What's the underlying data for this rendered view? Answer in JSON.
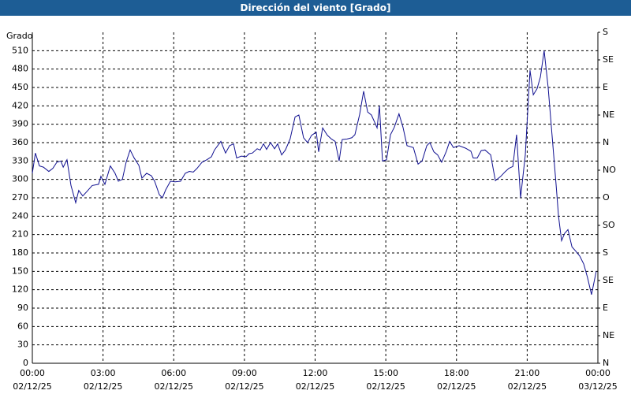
{
  "chart_data": {
    "type": "line",
    "title": "Dirección del viento [Grado]",
    "y_label": "Grado",
    "color": "#101090",
    "grid": true,
    "x": [
      0,
      0.13,
      0.3,
      0.47,
      0.7,
      0.87,
      1.04,
      1.21,
      1.31,
      1.47,
      1.64,
      1.84,
      1.97,
      2.14,
      2.31,
      2.54,
      2.81,
      2.91,
      3.08,
      3.31,
      3.51,
      3.65,
      3.82,
      3.98,
      4.15,
      4.32,
      4.52,
      4.65,
      4.85,
      5.05,
      5.19,
      5.39,
      5.52,
      5.66,
      5.86,
      6.06,
      6.29,
      6.49,
      6.66,
      6.83,
      6.99,
      7.2,
      7.4,
      7.6,
      7.73,
      8.0,
      8.2,
      8.37,
      8.54,
      8.67,
      8.87,
      9.07,
      9.2,
      9.34,
      9.54,
      9.67,
      9.81,
      9.94,
      10.11,
      10.28,
      10.41,
      10.58,
      10.74,
      10.94,
      11.15,
      11.31,
      11.51,
      11.68,
      11.85,
      12.05,
      12.15,
      12.32,
      12.52,
      12.69,
      12.85,
      13.02,
      13.15,
      13.36,
      13.56,
      13.69,
      13.89,
      14.06,
      14.23,
      14.39,
      14.53,
      14.63,
      14.73,
      14.86,
      15.03,
      15.2,
      15.36,
      15.56,
      15.73,
      15.9,
      16.17,
      16.37,
      16.54,
      16.74,
      16.87,
      17.04,
      17.2,
      17.37,
      17.57,
      17.71,
      17.87,
      18.11,
      18.38,
      18.61,
      18.71,
      18.88,
      19.05,
      19.21,
      19.45,
      19.65,
      19.88,
      20.05,
      20.22,
      20.39,
      20.55,
      20.72,
      20.92,
      21.12,
      21.26,
      21.42,
      21.56,
      21.72,
      21.89,
      22.06,
      22.23,
      22.33,
      22.46,
      22.59,
      22.73,
      22.9,
      23.06,
      23.23,
      23.4,
      23.56,
      23.73,
      23.93
    ],
    "values": [
      310,
      343,
      322,
      320,
      313,
      318,
      328,
      330,
      320,
      332,
      290,
      262,
      282,
      273,
      280,
      290,
      292,
      305,
      292,
      322,
      310,
      297,
      300,
      328,
      348,
      335,
      323,
      302,
      310,
      306,
      297,
      275,
      270,
      283,
      297,
      296,
      297,
      310,
      313,
      312,
      318,
      328,
      332,
      337,
      348,
      362,
      343,
      355,
      358,
      335,
      338,
      337,
      342,
      343,
      350,
      348,
      358,
      349,
      360,
      350,
      358,
      340,
      348,
      366,
      402,
      405,
      368,
      360,
      372,
      377,
      345,
      384,
      372,
      366,
      362,
      330,
      365,
      366,
      368,
      373,
      406,
      444,
      410,
      405,
      393,
      384,
      420,
      330,
      332,
      373,
      385,
      407,
      385,
      355,
      352,
      325,
      330,
      355,
      360,
      345,
      340,
      328,
      346,
      362,
      352,
      355,
      351,
      346,
      335,
      335,
      347,
      348,
      340,
      298,
      305,
      312,
      318,
      321,
      373,
      270,
      340,
      478,
      438,
      448,
      467,
      510,
      450,
      370,
      290,
      240,
      200,
      212,
      218,
      190,
      183,
      175,
      162,
      140,
      112,
      150
    ],
    "xlim": [
      0,
      24
    ],
    "xticks": [
      {
        "value": 0,
        "label": "00:00\n02/12/25"
      },
      {
        "value": 3,
        "label": "03:00\n02/12/25"
      },
      {
        "value": 6,
        "label": "06:00\n02/12/25"
      },
      {
        "value": 9,
        "label": "09:00\n02/12/25"
      },
      {
        "value": 12,
        "label": "12:00\n02/12/25"
      },
      {
        "value": 15,
        "label": "15:00\n02/12/25"
      },
      {
        "value": 18,
        "label": "18:00\n02/12/25"
      },
      {
        "value": 21,
        "label": "21:00\n02/12/25"
      },
      {
        "value": 24,
        "label": "00:00\n03/12/25"
      }
    ],
    "ylim": [
      0,
      540
    ],
    "yticks": [
      0,
      30,
      60,
      90,
      120,
      150,
      180,
      210,
      240,
      270,
      300,
      330,
      360,
      390,
      420,
      450,
      480,
      510
    ],
    "y2lim": [
      0,
      540
    ],
    "y2ticks": [
      {
        "value": 0,
        "label": "N"
      },
      {
        "value": 45,
        "label": "NE"
      },
      {
        "value": 90,
        "label": "E"
      },
      {
        "value": 135,
        "label": "SE"
      },
      {
        "value": 180,
        "label": "S"
      },
      {
        "value": 225,
        "label": "SO"
      },
      {
        "value": 270,
        "label": "O"
      },
      {
        "value": 315,
        "label": "NO"
      },
      {
        "value": 360,
        "label": "N"
      },
      {
        "value": 405,
        "label": "NE"
      },
      {
        "value": 450,
        "label": "E"
      },
      {
        "value": 495,
        "label": "SE"
      },
      {
        "value": 540,
        "label": "S"
      }
    ]
  }
}
